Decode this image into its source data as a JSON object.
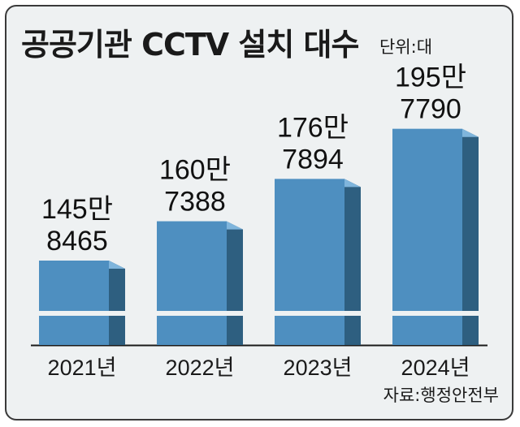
{
  "header": {
    "title": "공공기관 CCTV 설치 대수",
    "unit": "단위:대"
  },
  "footer": {
    "source": "자료:행정안전부"
  },
  "colors": {
    "bar_front": "#4e8fc0",
    "bar_side": "#2e5f80",
    "bar_top": "#7fb5dc",
    "background": "#eef1f2"
  },
  "chart_data": {
    "type": "bar",
    "title": "공공기관 CCTV 설치 대수",
    "categories": [
      "2021년",
      "2022년",
      "2023년",
      "2024년"
    ],
    "values": [
      1458465,
      1607388,
      1767894,
      1957790
    ],
    "value_labels": [
      [
        "145만",
        "8465"
      ],
      [
        "160만",
        "7388"
      ],
      [
        "176만",
        "7894"
      ],
      [
        "195만",
        "7790"
      ]
    ],
    "axis_break": true,
    "grid": false,
    "legend": "none"
  }
}
